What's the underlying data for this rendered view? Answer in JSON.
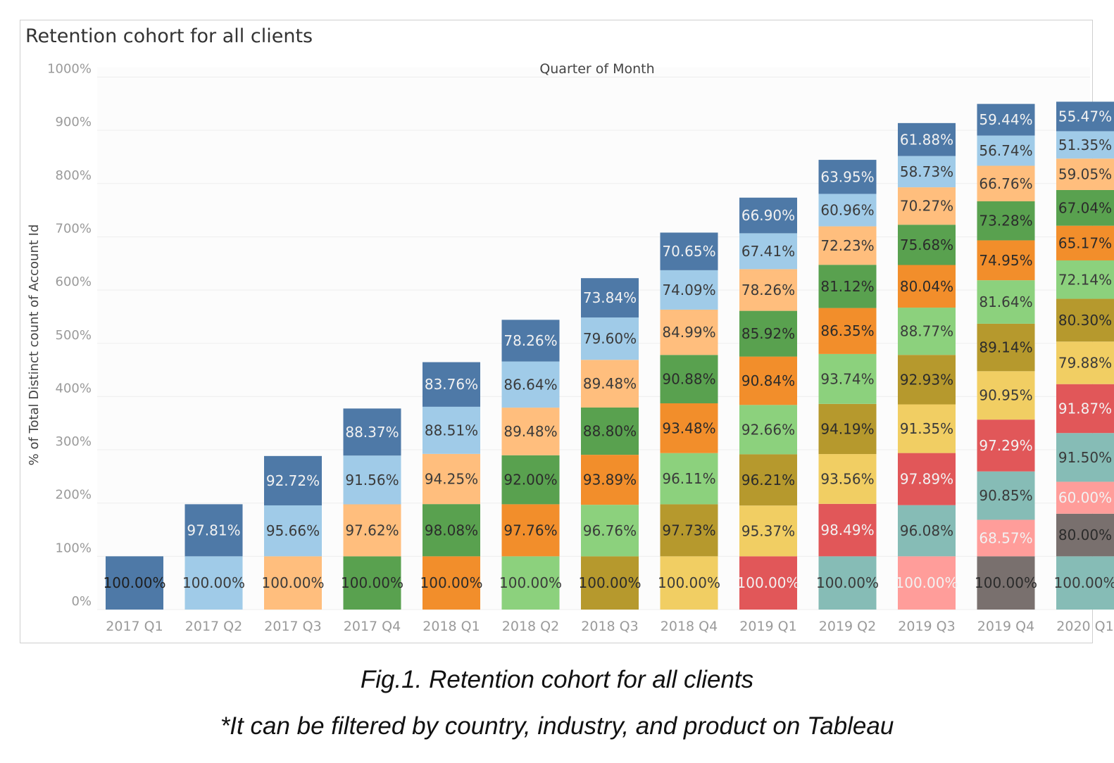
{
  "chart_data": {
    "type": "bar",
    "stacked": true,
    "title": "Retention cohort for all clients",
    "xlabel": "Quarter of Month",
    "ylabel": "% of Total Distinct count of Account Id",
    "ylim": [
      0,
      1000
    ],
    "yticks": [
      "0%",
      "100%",
      "200%",
      "300%",
      "400%",
      "500%",
      "600%",
      "700%",
      "800%",
      "900%",
      "1000%"
    ],
    "categories": [
      "2017 Q1",
      "2017 Q2",
      "2017 Q3",
      "2017 Q4",
      "2018 Q1",
      "2018 Q2",
      "2018 Q3",
      "2018 Q4",
      "2019 Q1",
      "2019 Q2",
      "2019 Q3",
      "2019 Q4",
      "2020 Q1"
    ],
    "palette": [
      "#4e79a7",
      "#a0cbe8",
      "#f28e2b",
      "#ffbe7d",
      "#59a14f",
      "#8cd17d",
      "#b6992d",
      "#f1ce63",
      "#e15759",
      "#86bcb6",
      "#ff9d9a",
      "#79706e"
    ],
    "stacks": [
      {
        "colors": [
          "#4e79a7"
        ],
        "values": [
          100
        ],
        "labels": [
          "100.00%"
        ]
      },
      {
        "colors": [
          "#a0cbe8",
          "#4e79a7"
        ],
        "values": [
          100,
          97.81
        ],
        "labels": [
          "100.00%",
          "97.81%"
        ]
      },
      {
        "colors": [
          "#ffbe7d",
          "#a0cbe8",
          "#4e79a7"
        ],
        "values": [
          100,
          95.66,
          92.72
        ],
        "labels": [
          "100.00%",
          "95.66%",
          "92.72%"
        ]
      },
      {
        "colors": [
          "#59a14f",
          "#ffbe7d",
          "#a0cbe8",
          "#4e79a7"
        ],
        "values": [
          100,
          97.62,
          91.56,
          88.37
        ],
        "labels": [
          "100.00%",
          "97.62%",
          "91.56%",
          "88.37%"
        ]
      },
      {
        "colors": [
          "#f28e2b",
          "#59a14f",
          "#ffbe7d",
          "#a0cbe8",
          "#4e79a7"
        ],
        "values": [
          100,
          98.08,
          94.25,
          88.51,
          83.76
        ],
        "labels": [
          "100.00%",
          "98.08%",
          "94.25%",
          "88.51%",
          "83.76%"
        ]
      },
      {
        "colors": [
          "#8cd17d",
          "#f28e2b",
          "#59a14f",
          "#ffbe7d",
          "#a0cbe8",
          "#4e79a7"
        ],
        "values": [
          100,
          97.76,
          92.0,
          89.48,
          86.64,
          78.26
        ],
        "labels": [
          "100.00%",
          "97.76%",
          "92.00%",
          "89.48%",
          "86.64%",
          "78.26%"
        ]
      },
      {
        "colors": [
          "#b6992d",
          "#8cd17d",
          "#f28e2b",
          "#59a14f",
          "#ffbe7d",
          "#a0cbe8",
          "#4e79a7"
        ],
        "values": [
          100,
          96.76,
          93.89,
          88.8,
          89.48,
          79.6,
          73.84
        ],
        "labels": [
          "100.00%",
          "96.76%",
          "93.89%",
          "88.80%",
          "89.48%",
          "79.60%",
          "73.84%"
        ]
      },
      {
        "colors": [
          "#f1ce63",
          "#b6992d",
          "#8cd17d",
          "#f28e2b",
          "#59a14f",
          "#ffbe7d",
          "#a0cbe8",
          "#4e79a7"
        ],
        "values": [
          100,
          97.73,
          96.11,
          93.48,
          90.88,
          84.99,
          74.09,
          70.65
        ],
        "labels": [
          "100.00%",
          "97.73%",
          "96.11%",
          "93.48%",
          "90.88%",
          "84.99%",
          "74.09%",
          "70.65%"
        ]
      },
      {
        "colors": [
          "#e15759",
          "#f1ce63",
          "#b6992d",
          "#8cd17d",
          "#f28e2b",
          "#59a14f",
          "#ffbe7d",
          "#a0cbe8",
          "#4e79a7"
        ],
        "values": [
          100,
          95.37,
          96.21,
          92.66,
          90.84,
          85.92,
          78.26,
          67.41,
          66.9
        ],
        "labels": [
          "100.00%",
          "95.37%",
          "96.21%",
          "92.66%",
          "90.84%",
          "85.92%",
          "78.26%",
          "67.41%",
          "66.90%"
        ]
      },
      {
        "colors": [
          "#86bcb6",
          "#e15759",
          "#f1ce63",
          "#b6992d",
          "#8cd17d",
          "#f28e2b",
          "#59a14f",
          "#ffbe7d",
          "#a0cbe8",
          "#4e79a7"
        ],
        "values": [
          100,
          98.49,
          93.56,
          94.19,
          93.74,
          86.35,
          81.12,
          72.23,
          60.96,
          63.95
        ],
        "labels": [
          "100.00%",
          "98.49%",
          "93.56%",
          "94.19%",
          "93.74%",
          "86.35%",
          "81.12%",
          "72.23%",
          "60.96%",
          "63.95%"
        ]
      },
      {
        "colors": [
          "#ff9d9a",
          "#86bcb6",
          "#e15759",
          "#f1ce63",
          "#b6992d",
          "#8cd17d",
          "#f28e2b",
          "#59a14f",
          "#ffbe7d",
          "#a0cbe8",
          "#4e79a7"
        ],
        "values": [
          100,
          96.08,
          97.89,
          91.35,
          92.93,
          88.77,
          80.04,
          75.68,
          70.27,
          58.73,
          61.88
        ],
        "labels": [
          "100.00%",
          "96.08%",
          "97.89%",
          "91.35%",
          "92.93%",
          "88.77%",
          "80.04%",
          "75.68%",
          "70.27%",
          "58.73%",
          "61.88%"
        ]
      },
      {
        "colors": [
          "#79706e",
          "#ff9d9a",
          "#86bcb6",
          "#e15759",
          "#f1ce63",
          "#b6992d",
          "#8cd17d",
          "#f28e2b",
          "#59a14f",
          "#ffbe7d",
          "#a0cbe8",
          "#4e79a7"
        ],
        "values": [
          100,
          68.57,
          90.85,
          97.29,
          90.95,
          89.14,
          81.64,
          74.95,
          73.28,
          66.76,
          56.74,
          59.44
        ],
        "labels": [
          "100.00%",
          "68.57%",
          "90.85%",
          "97.29%",
          "90.95%",
          "89.14%",
          "81.64%",
          "74.95%",
          "73.28%",
          "66.76%",
          "56.74%",
          "59.44%"
        ]
      },
      {
        "colors": [
          "#86bcb6",
          "#79706e",
          "#ff9d9a",
          "#86bcb6",
          "#e15759",
          "#f1ce63",
          "#b6992d",
          "#8cd17d",
          "#f28e2b",
          "#59a14f",
          "#ffbe7d",
          "#a0cbe8",
          "#4e79a7"
        ],
        "values": [
          100,
          80.0,
          60.0,
          91.5,
          91.87,
          79.88,
          80.3,
          72.14,
          65.17,
          67.04,
          59.05,
          51.35,
          55.47
        ],
        "labels": [
          "100.00%",
          "80.00%",
          "60.00%",
          "91.50%",
          "91.87%",
          "79.88%",
          "80.30%",
          "72.14%",
          "65.17%",
          "67.04%",
          "59.05%",
          "51.35%",
          "55.47%"
        ]
      }
    ],
    "grid": true,
    "legend": "none"
  },
  "caption": "Fig.1. Retention cohort for all clients",
  "footnote": "*It can be filtered by country, industry, and product on Tableau"
}
